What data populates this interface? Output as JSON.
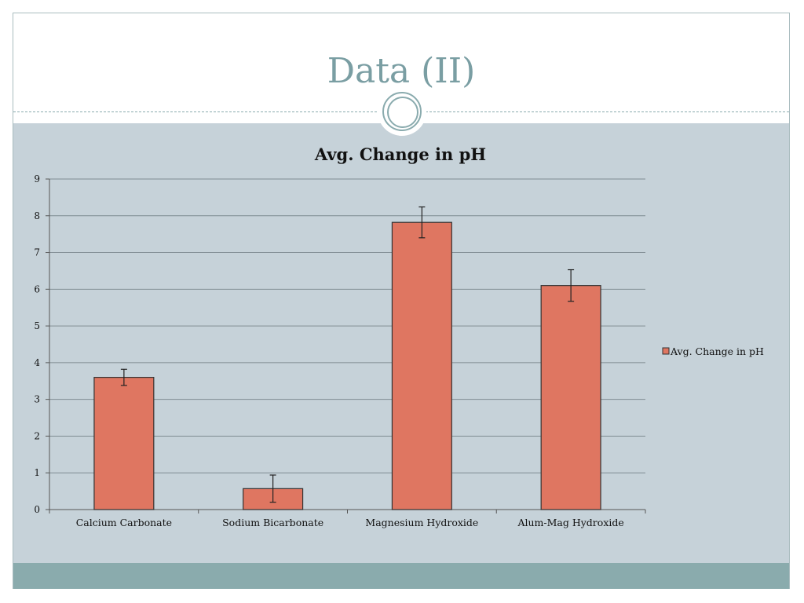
{
  "slide": {
    "title": "Data (II)"
  },
  "colors": {
    "title": "#7a9ea3",
    "background": "#c6d2d9",
    "footer": "#8aabad",
    "bar_fill": "#df7661",
    "bar_stroke": "#333333"
  },
  "chart_data": {
    "type": "bar",
    "title": "Avg. Change in pH",
    "xlabel": "",
    "ylabel": "",
    "categories": [
      "Calcium Carbonate",
      "Sodium Bicarbonate",
      "Magnesium Hydroxide",
      "Alum-Mag Hydroxide"
    ],
    "series": [
      {
        "name": "Avg. Change in pH",
        "values": [
          3.6,
          0.57,
          7.82,
          6.1
        ],
        "error": [
          0.22,
          0.37,
          0.42,
          0.43
        ]
      }
    ],
    "ylim": [
      0,
      9
    ],
    "yticks": [
      0,
      1,
      2,
      3,
      4,
      5,
      6,
      7,
      8,
      9
    ],
    "grid": true,
    "legend_position": "right"
  }
}
